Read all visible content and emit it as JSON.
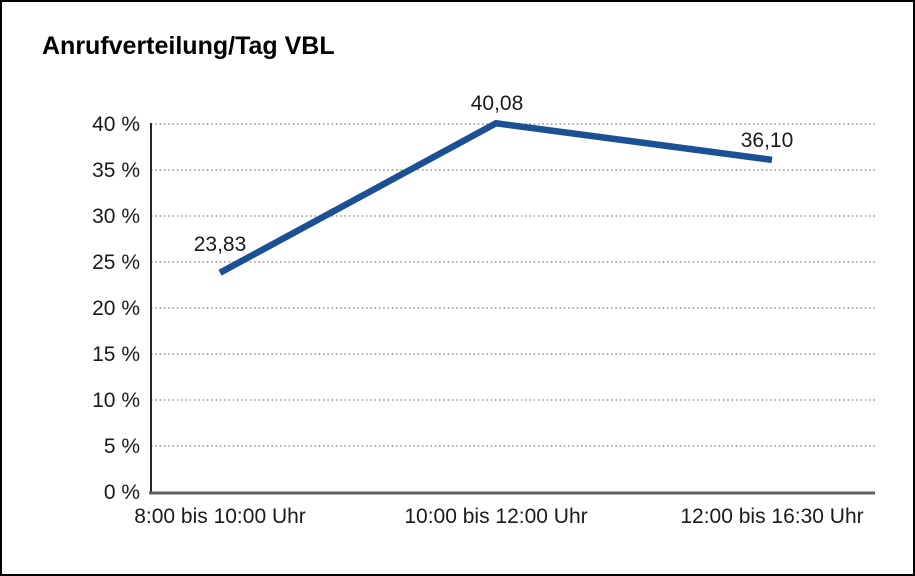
{
  "chart_data": {
    "type": "line",
    "title": "Anrufverteilung/Tag VBL",
    "categories": [
      "8:00 bis 10:00 Uhr",
      "10:00 bis 12:00 Uhr",
      "12:00 bis 16:30 Uhr"
    ],
    "values": [
      23.83,
      40.08,
      36.1
    ],
    "data_labels": [
      "23,83",
      "40,08",
      "36,10"
    ],
    "y_ticks": [
      0,
      5,
      10,
      15,
      20,
      25,
      30,
      35,
      40
    ],
    "y_tick_labels": [
      "0 %",
      "5 %",
      "10 %",
      "15 %",
      "20 %",
      "25 %",
      "30 %",
      "35 %",
      "40 %"
    ],
    "ylim": [
      0,
      40
    ],
    "xlabel": "",
    "ylabel": "",
    "legend": "none",
    "grid": "horizontal-dotted",
    "line_color": "#1b5094",
    "grid_color": "#7a7a7a",
    "axis_color": "#262626",
    "baseline_color": "#5f5f5f",
    "text_color": "#1a1a1a"
  }
}
